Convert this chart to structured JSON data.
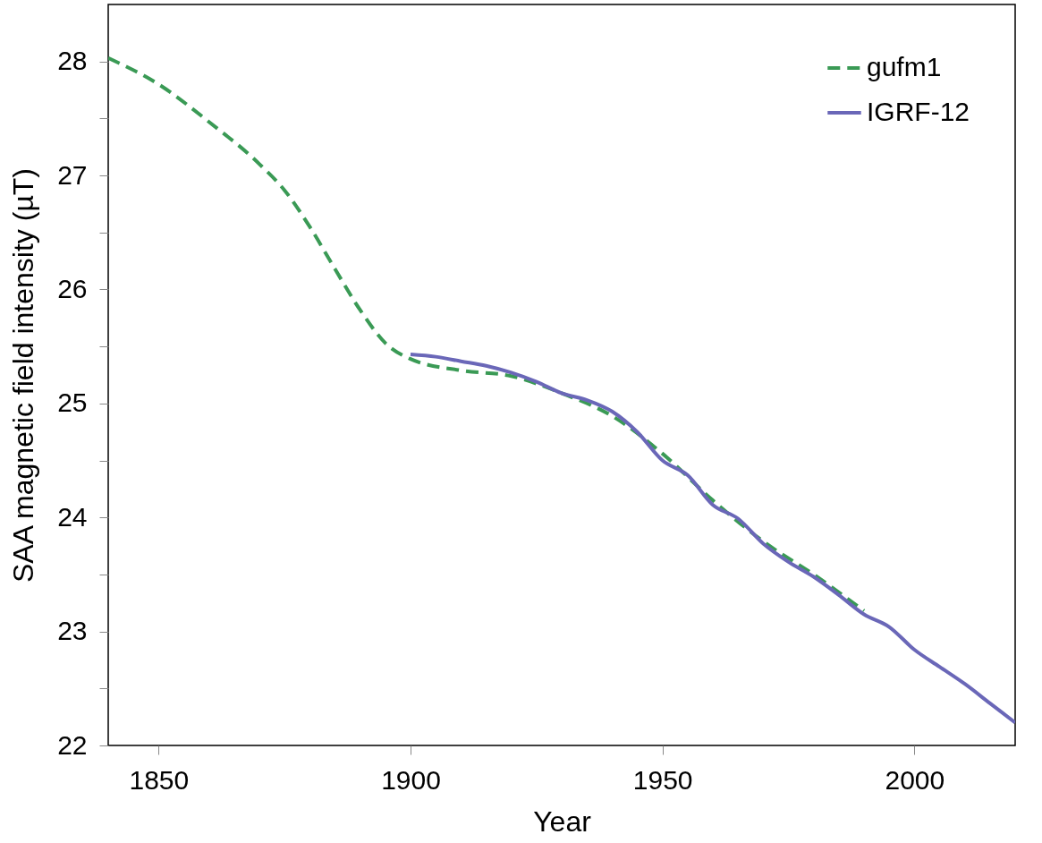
{
  "chart_data": {
    "type": "line",
    "xlabel": "Year",
    "ylabel": "SAA magnetic field intensity (µT)",
    "xlim": [
      1840,
      2020
    ],
    "xticks": [
      1850,
      1900,
      1950,
      2000
    ],
    "ylim": [
      22,
      28.5
    ],
    "yticks": [
      22,
      {
        "value": 22.5,
        "label": null
      },
      23,
      {
        "value": 23.5,
        "label": null
      },
      24,
      {
        "value": 24.5,
        "label": null
      },
      25,
      {
        "value": 25.5,
        "label": null
      },
      26,
      {
        "value": 26.5,
        "label": null
      },
      27,
      {
        "value": 27.5,
        "label": null
      },
      28
    ],
    "grid": false,
    "legend": "top right",
    "series": [
      {
        "name": "gufm1",
        "color": "#3a9a55",
        "line_style": "dashed",
        "x": [
          1840,
          1850,
          1860,
          1870,
          1875,
          1880,
          1885,
          1890,
          1895,
          1900,
          1910,
          1920,
          1930,
          1940,
          1950,
          1960,
          1970,
          1980,
          1990
        ],
        "values": [
          28.03,
          27.8,
          27.47,
          27.1,
          26.87,
          26.55,
          26.18,
          25.82,
          25.53,
          25.39,
          25.29,
          25.24,
          25.09,
          24.89,
          24.56,
          24.15,
          23.79,
          23.5,
          23.18
        ]
      },
      {
        "name": "IGRF-12",
        "color": "#6a67b8",
        "line_style": "solid",
        "x": [
          1900,
          1905,
          1910,
          1915,
          1920,
          1925,
          1930,
          1935,
          1940,
          1945,
          1950,
          1955,
          1960,
          1965,
          1970,
          1975,
          1980,
          1985,
          1990,
          1995,
          2000,
          2005,
          2010,
          2015,
          2020
        ],
        "values": [
          25.43,
          25.41,
          25.37,
          25.33,
          25.27,
          25.19,
          25.09,
          25.03,
          24.93,
          24.75,
          24.5,
          24.37,
          24.11,
          23.99,
          23.77,
          23.61,
          23.48,
          23.32,
          23.15,
          23.04,
          22.84,
          22.69,
          22.54,
          22.37,
          22.2
        ]
      }
    ]
  }
}
